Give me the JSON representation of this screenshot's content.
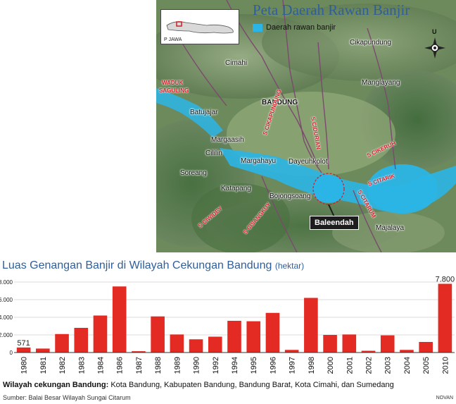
{
  "map": {
    "title": "Peta Daerah Rawan Banjir",
    "legend": "Daerah rawan banjir",
    "inset_label": "P JAWA",
    "north": "U",
    "callout": "Baleendah",
    "places": {
      "cikapundung": "Cikapundung",
      "cimahi": "Cimahi",
      "manglayang": "Manglayang",
      "bandung": "BANDUNG",
      "batujajar": "Batujajar",
      "margaasih": "Margaasih",
      "cililin": "Cililin",
      "margahayu": "Margahayu",
      "dayeuhkolot": "Dayeuhkolot",
      "soreang": "Soreang",
      "katapang": "Katapang",
      "bojongsoang": "Bojongsoang",
      "majalaya": "Majalaya"
    },
    "labels": {
      "waduk1": "WADUK",
      "waduk2": "SAGULING",
      "cikapundung": "S CIKAPUNDUNG",
      "cidurian": "S CIDURIAN",
      "cikeruh": "S CIKERUH",
      "citarik": "S CITARIK",
      "citarum": "S CITARUM",
      "ciwidey": "S CIWIDEY",
      "cisangkuy": "S CISANGKUY"
    },
    "colors": {
      "flood": "#2bb5e6",
      "title": "#2f5f9a",
      "river_label": "#d11d24"
    }
  },
  "chart_title": "Luas Genangan Banjir di Wilayah Cekungan Bandung",
  "chart_unit": "(hektar)",
  "chart_data": {
    "type": "bar",
    "categories": [
      "1980",
      "1981",
      "1982",
      "1983",
      "1984",
      "1986",
      "1987",
      "1988",
      "1989",
      "1990",
      "1992",
      "1994",
      "1995",
      "1996",
      "1997",
      "1998",
      "2000",
      "2001",
      "2002",
      "2003",
      "2004",
      "2005",
      "2010"
    ],
    "values": [
      571,
      450,
      2100,
      2800,
      4200,
      7500,
      150,
      4100,
      2050,
      1500,
      1800,
      3600,
      3550,
      4500,
      300,
      6200,
      2000,
      2050,
      200,
      1950,
      300,
      1200,
      7800
    ],
    "value_labels": {
      "0": "571",
      "22": "7.800"
    },
    "yticks": [
      "8.000",
      "6.000",
      "4.000",
      "2.000",
      "0"
    ],
    "ylim": [
      0,
      8000
    ],
    "bar_color": "#e32b24",
    "grid": true
  },
  "footer": {
    "label": "Wilayah cekungan Bandung:",
    "text": "Kota Bandung, Kabupaten Bandung, Bandung Barat, Kota Cimahi, dan Sumedang",
    "source": "Sumber: Balai Besar Wilayah Sungai Citarum",
    "credit": "NOVAN"
  }
}
